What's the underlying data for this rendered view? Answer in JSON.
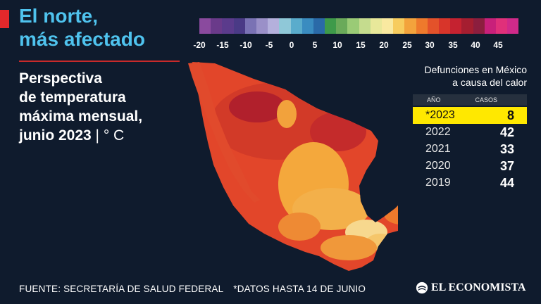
{
  "headline": {
    "line1": "El norte,",
    "line2": "más afectado"
  },
  "subtitle": {
    "line1": "Perspectiva",
    "line2": "de temperatura",
    "line3": "máxima mensual,",
    "line4": "junio 2023",
    "unit": " | ° C"
  },
  "scale": {
    "labels": [
      "-20",
      "-15",
      "-10",
      "-5",
      "0",
      "5",
      "10",
      "15",
      "20",
      "25",
      "30",
      "35",
      "40",
      "45"
    ],
    "colors": [
      "#8a4a9e",
      "#6a3a8a",
      "#5b3b8c",
      "#4a3a86",
      "#7a72b4",
      "#9a90c8",
      "#b4b0dc",
      "#8fc8d8",
      "#5aaccc",
      "#3a8cc0",
      "#2a6aa8",
      "#3e9a4a",
      "#6aaa5a",
      "#9acb76",
      "#c5dc8e",
      "#e8e89a",
      "#f9e9a0",
      "#f7cc5e",
      "#f3a33c",
      "#ee7a2c",
      "#e3522a",
      "#d8352a",
      "#c52230",
      "#a51e30",
      "#8c1e3e",
      "#c8207a",
      "#e0307a",
      "#d02a8a"
    ]
  },
  "panel": {
    "title_line1": "Defunciones en México",
    "title_line2": "a causa del calor",
    "col_year": "AÑO",
    "col_cases": "CASOS",
    "rows": [
      {
        "year": "*2023",
        "cases": "8",
        "highlight": true
      },
      {
        "year": "2022",
        "cases": "42"
      },
      {
        "year": "2021",
        "cases": "33"
      },
      {
        "year": "2020",
        "cases": "37"
      },
      {
        "year": "2019",
        "cases": "44"
      }
    ]
  },
  "footer": {
    "source": "FUENTE: SECRETARÍA DE SALUD FEDERAL",
    "note": "*DATOS HASTA 14 DE JUNIO"
  },
  "brand": {
    "name": "EL ECONOMISTA",
    "icon": "economista-logo-icon"
  }
}
